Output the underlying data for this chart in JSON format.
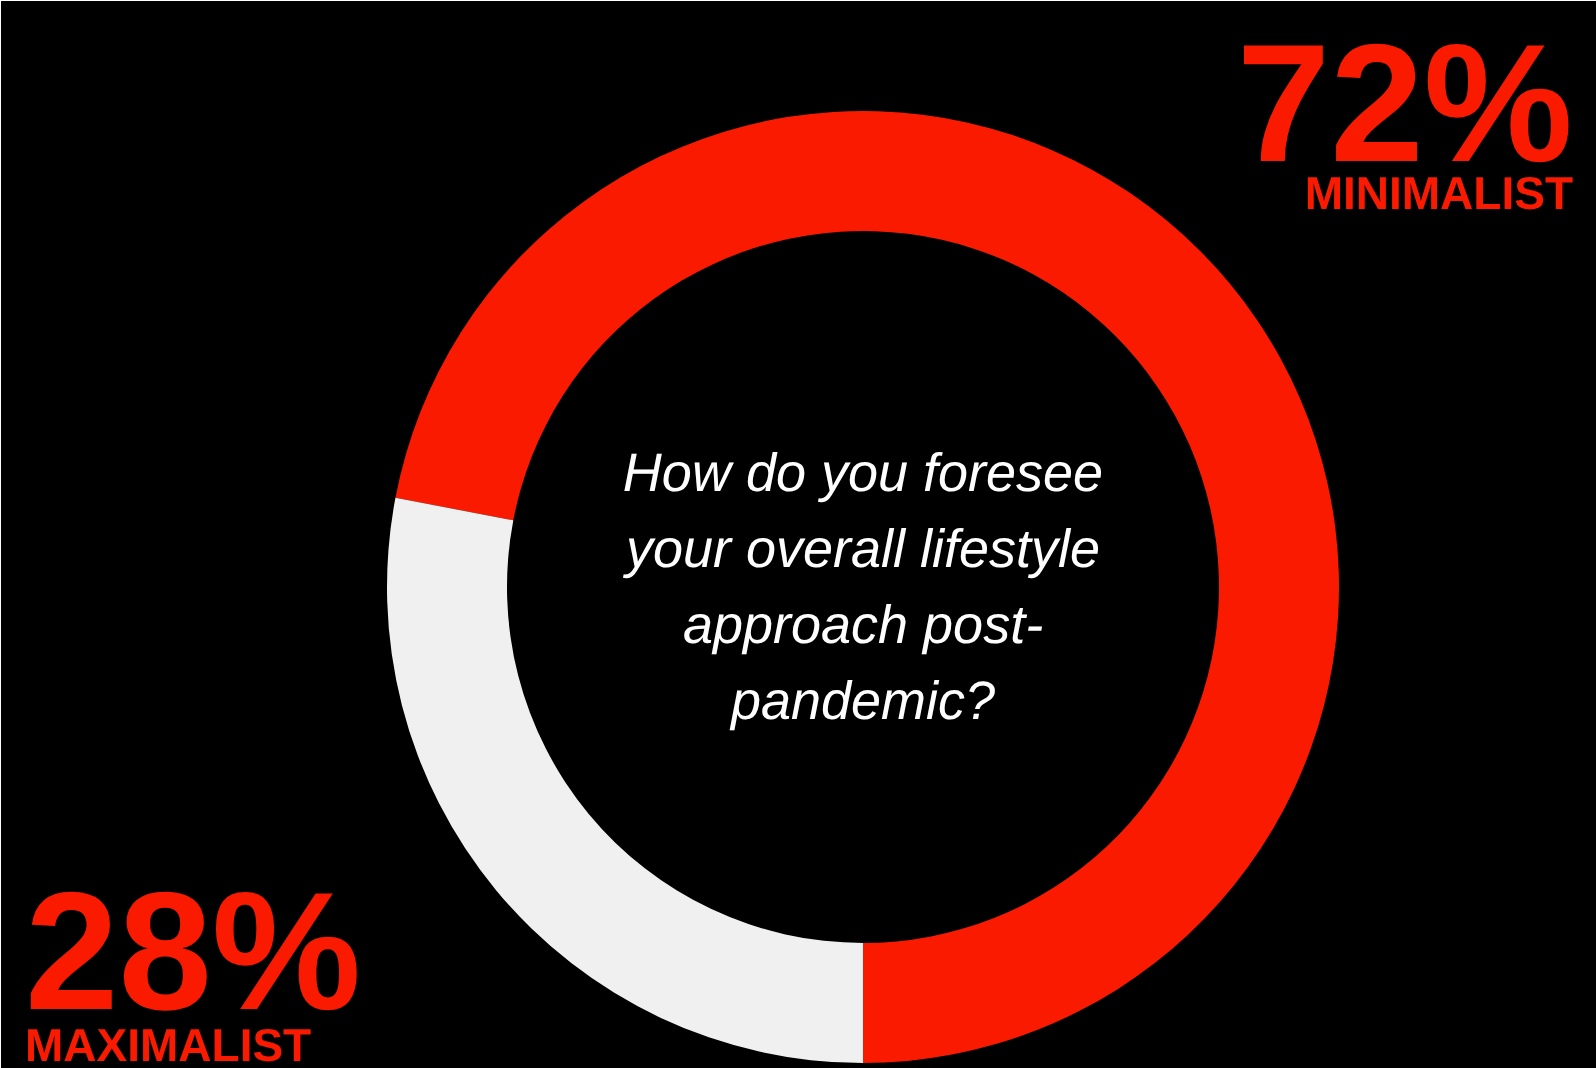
{
  "chart_data": {
    "type": "donut",
    "title": "How do you foresee your overall lifestyle approach post-pandemic?",
    "categories": [
      "MINIMALIST",
      "MAXIMALIST"
    ],
    "values": [
      72,
      28
    ],
    "value_labels": [
      "72%",
      "28%"
    ],
    "colors": [
      "#fa1a00",
      "#f0f0f0"
    ],
    "legend": false
  }
}
